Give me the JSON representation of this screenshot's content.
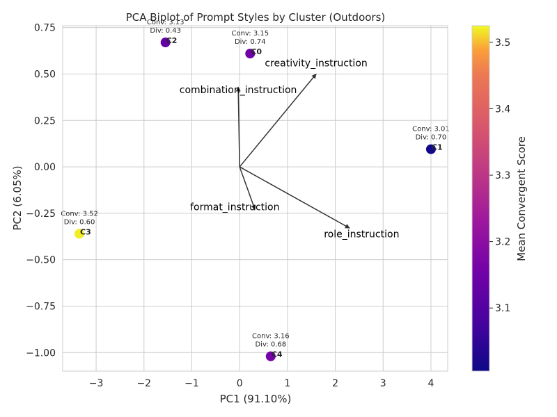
{
  "chart_data": {
    "type": "scatter",
    "title": "PCA Biplot of Prompt Styles by Cluster (Outdoors)",
    "xlabel": "PC1 (91.10%)",
    "ylabel": "PC2 (6.05%)",
    "xlim": [
      -3.7,
      4.35
    ],
    "ylim": [
      -1.1,
      0.76
    ],
    "xticks": [
      -3,
      -2,
      -1,
      0,
      1,
      2,
      3,
      4
    ],
    "xtick_labels": [
      "−3",
      "−2",
      "−1",
      "0",
      "1",
      "2",
      "3",
      "4"
    ],
    "yticks": [
      0.75,
      0.5,
      0.25,
      0.0,
      -0.25,
      -0.5,
      -0.75,
      -1.0
    ],
    "ytick_labels": [
      "0.75",
      "0.50",
      "0.25",
      "0.00",
      "−0.25",
      "−0.50",
      "−0.75",
      "−1.00"
    ],
    "grid": true,
    "colormap": "plasma",
    "points": [
      {
        "label": "C0",
        "x": 0.22,
        "y": 0.61,
        "conv": 3.15,
        "ann_conv": "Conv: 3.15",
        "ann_div": "Div: 0.74"
      },
      {
        "label": "C1",
        "x": 4.0,
        "y": 0.095,
        "conv": 3.01,
        "ann_conv": "Conv: 3.01",
        "ann_div": "Div: 0.70"
      },
      {
        "label": "C2",
        "x": -1.55,
        "y": 0.67,
        "conv": 3.13,
        "ann_conv": "Conv: 3.13",
        "ann_div": "Div: 0.43"
      },
      {
        "label": "C3",
        "x": -3.35,
        "y": -0.36,
        "conv": 3.52,
        "ann_conv": "Conv: 3.52",
        "ann_div": "Div: 0.60"
      },
      {
        "label": "C4",
        "x": 0.65,
        "y": -1.02,
        "conv": 3.16,
        "ann_conv": "Conv: 3.16",
        "ann_div": "Div: 0.68"
      }
    ],
    "vectors": [
      {
        "name": "creativity_instruction",
        "x": 1.6,
        "y": 0.5,
        "label_x": 1.6,
        "label_y": 0.56
      },
      {
        "name": "combination_instruction",
        "x": -0.03,
        "y": 0.43,
        "label_x": -0.03,
        "label_y": 0.415
      },
      {
        "name": "format_instruction",
        "x": 0.32,
        "y": -0.23,
        "label_x": -0.1,
        "label_y": -0.215
      },
      {
        "name": "role_instruction",
        "x": 2.3,
        "y": -0.33,
        "label_x": 2.55,
        "label_y": -0.36
      }
    ],
    "colorbar": {
      "label": "Mean Convergent Score",
      "min": 3.005,
      "max": 3.525,
      "ticks": [
        3.1,
        3.2,
        3.3,
        3.4,
        3.5
      ],
      "tick_labels": [
        "3.1",
        "3.2",
        "3.3",
        "3.4",
        "3.5"
      ]
    }
  }
}
